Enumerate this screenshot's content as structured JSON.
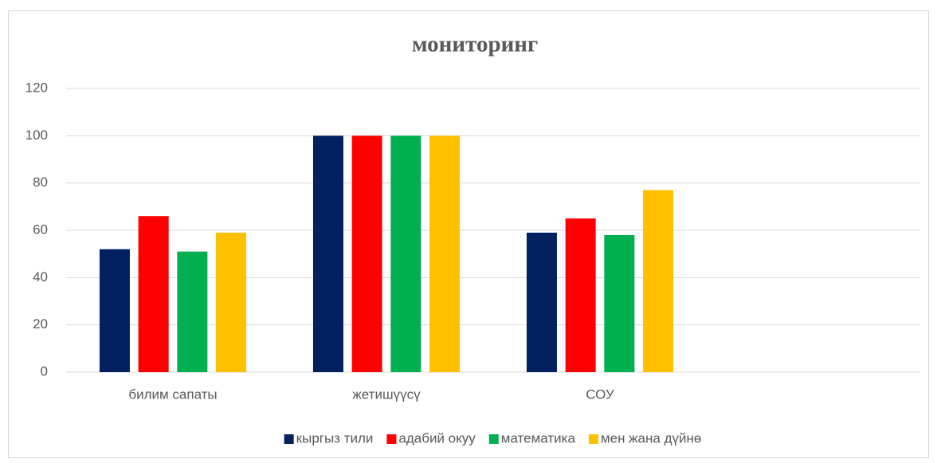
{
  "chart_data": {
    "type": "bar",
    "title": "мониторинг",
    "categories": [
      "билим сапаты",
      "жетишүүсү",
      "СОУ",
      null
    ],
    "series": [
      {
        "name": "кыргыз тили",
        "color": "#002060",
        "values": [
          52,
          100,
          59,
          null
        ]
      },
      {
        "name": "адабий окуу",
        "color": "#ff0000",
        "values": [
          66,
          100,
          65,
          null
        ]
      },
      {
        "name": "математика",
        "color": "#00b050",
        "values": [
          51,
          100,
          58,
          null
        ]
      },
      {
        "name": "мен жана дүйнө",
        "color": "#ffc000",
        "values": [
          59,
          100,
          77,
          null
        ]
      }
    ],
    "ylim": [
      0,
      120
    ],
    "yticks": [
      0,
      20,
      40,
      60,
      80,
      100,
      120
    ],
    "grid": true,
    "legend": "bottom"
  }
}
